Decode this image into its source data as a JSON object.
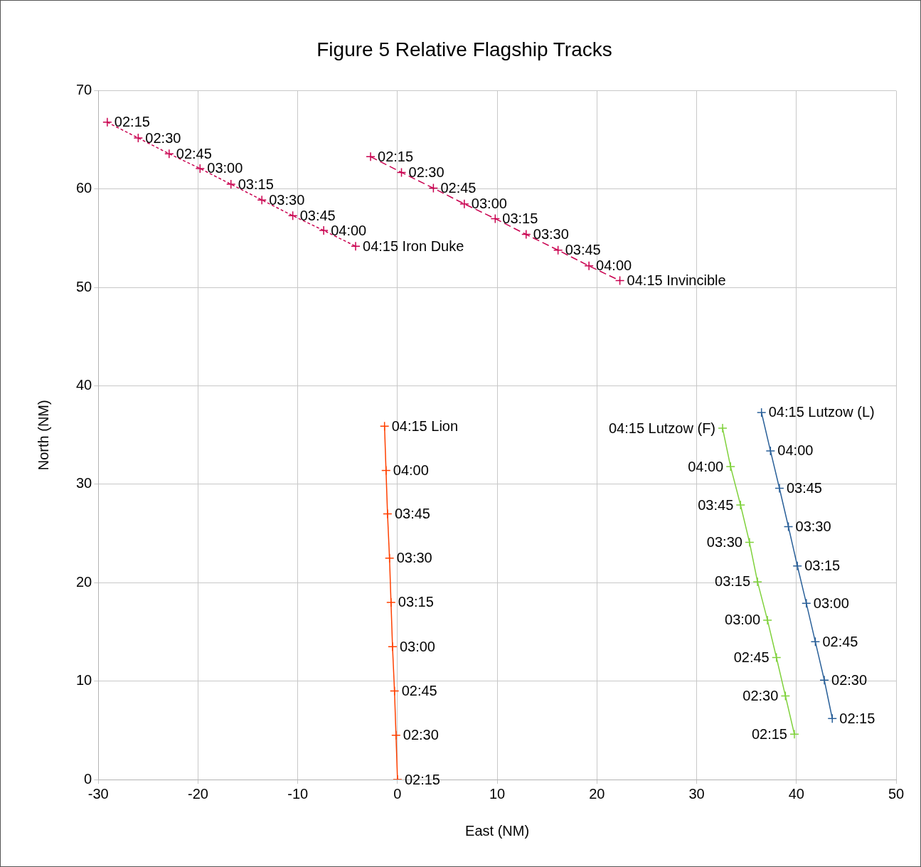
{
  "chart_data": {
    "type": "scatter",
    "title": "Figure 5 Relative Flagship Tracks",
    "xlabel": "East (NM)",
    "ylabel": "North (NM)",
    "xlim": [
      -30,
      50
    ],
    "xticks": [
      -30,
      -20,
      -10,
      0,
      10,
      20,
      30,
      40,
      50
    ],
    "ylim": [
      0,
      70
    ],
    "yticks": [
      0,
      10,
      20,
      30,
      40,
      50,
      60,
      70
    ],
    "grid": true,
    "legend": false,
    "marker": "cross",
    "series": [
      {
        "type": "line",
        "line_style": "dotted",
        "color": "#c9004f",
        "x": [
          -29.1,
          -26.0,
          -22.9,
          -19.8,
          -16.7,
          -13.6,
          -10.5,
          -7.4,
          -4.2
        ],
        "values": [
          66.8,
          65.2,
          63.6,
          62.1,
          60.5,
          58.9,
          57.3,
          55.8,
          54.2
        ]
      },
      {
        "type": "line",
        "line_style": "dashed",
        "color": "#c9004f",
        "x": [
          -2.7,
          0.4,
          3.6,
          6.7,
          9.8,
          12.9,
          16.1,
          19.2,
          22.3
        ],
        "values": [
          63.3,
          61.7,
          60.1,
          58.5,
          57.0,
          55.4,
          53.8,
          52.2,
          50.7
        ]
      },
      {
        "type": "line",
        "line_style": "solid",
        "color": "#ff4000",
        "x": [
          0,
          -0.15,
          -0.3,
          -0.5,
          -0.65,
          -0.8,
          -1.0,
          -1.15,
          -1.3
        ],
        "values": [
          0,
          4.5,
          9.0,
          13.5,
          18.0,
          22.5,
          27.0,
          31.4,
          35.9
        ]
      },
      {
        "type": "line",
        "line_style": "solid",
        "color": "#7fd13b",
        "x": [
          39.8,
          38.9,
          38.0,
          37.1,
          36.1,
          35.3,
          34.4,
          33.4,
          32.6
        ],
        "values": [
          4.6,
          8.5,
          12.4,
          16.2,
          20.1,
          24.1,
          27.9,
          31.8,
          35.7
        ]
      },
      {
        "type": "line",
        "line_style": "solid",
        "color": "#2a6099",
        "x": [
          43.6,
          42.8,
          41.9,
          41.0,
          40.1,
          39.2,
          38.3,
          37.4,
          36.5
        ],
        "values": [
          6.2,
          10.1,
          14.0,
          17.9,
          21.7,
          25.7,
          29.6,
          33.4,
          37.3
        ]
      }
    ],
    "annotations": [
      {
        "text": "02:15",
        "x": -29.1,
        "y": 66.8
      },
      {
        "text": "02:30",
        "x": -26.0,
        "y": 65.2
      },
      {
        "text": "02:45",
        "x": -22.9,
        "y": 63.6
      },
      {
        "text": "03:00",
        "x": -19.8,
        "y": 62.1
      },
      {
        "text": "03:15",
        "x": -16.7,
        "y": 60.5
      },
      {
        "text": "03:30",
        "x": -13.6,
        "y": 58.9
      },
      {
        "text": "03:45",
        "x": -10.5,
        "y": 57.3
      },
      {
        "text": "04:00",
        "x": -7.4,
        "y": 55.8
      },
      {
        "text": "04:15 Iron Duke",
        "x": -4.2,
        "y": 54.2
      },
      {
        "text": "02:15",
        "x": -2.7,
        "y": 63.3
      },
      {
        "text": "02:30",
        "x": 0.4,
        "y": 61.7
      },
      {
        "text": "02:45",
        "x": 3.6,
        "y": 60.1
      },
      {
        "text": "03:00",
        "x": 6.7,
        "y": 58.5
      },
      {
        "text": "03:15",
        "x": 9.8,
        "y": 57.0
      },
      {
        "text": "03:30",
        "x": 12.9,
        "y": 55.4
      },
      {
        "text": "03:45",
        "x": 16.1,
        "y": 53.8
      },
      {
        "text": "04:00",
        "x": 19.2,
        "y": 52.2
      },
      {
        "text": "04:15 Invincible",
        "x": 22.3,
        "y": 50.7
      },
      {
        "text": "02:15",
        "x": 0,
        "y": 0
      },
      {
        "text": "02:30",
        "x": -0.15,
        "y": 4.5
      },
      {
        "text": "02:45",
        "x": -0.3,
        "y": 9.0
      },
      {
        "text": "03:00",
        "x": -0.5,
        "y": 13.5
      },
      {
        "text": "03:15",
        "x": -0.65,
        "y": 18.0
      },
      {
        "text": "03:30",
        "x": -0.8,
        "y": 22.5
      },
      {
        "text": "03:45",
        "x": -1.0,
        "y": 27.0
      },
      {
        "text": "04:00",
        "x": -1.15,
        "y": 31.4
      },
      {
        "text": "04:15 Lion",
        "x": -1.3,
        "y": 35.9
      },
      {
        "text": "02:15",
        "x": 39.8,
        "y": 4.6
      },
      {
        "text": "02:30",
        "x": 38.9,
        "y": 8.5
      },
      {
        "text": "02:45",
        "x": 38.0,
        "y": 12.4
      },
      {
        "text": "03:00",
        "x": 37.1,
        "y": 16.2
      },
      {
        "text": "03:15",
        "x": 36.1,
        "y": 20.1
      },
      {
        "text": "03:30",
        "x": 35.3,
        "y": 24.1
      },
      {
        "text": "03:45",
        "x": 34.4,
        "y": 27.9
      },
      {
        "text": "04:00",
        "x": 33.4,
        "y": 31.8
      },
      {
        "text": "04:15 Lutzow (F)",
        "x": 32.6,
        "y": 35.7
      },
      {
        "text": "02:15",
        "x": 43.6,
        "y": 6.2
      },
      {
        "text": "02:30",
        "x": 42.8,
        "y": 10.1
      },
      {
        "text": "02:45",
        "x": 41.9,
        "y": 14.0
      },
      {
        "text": "03:00",
        "x": 41.0,
        "y": 17.9
      },
      {
        "text": "03:15",
        "x": 40.1,
        "y": 21.7
      },
      {
        "text": "03:30",
        "x": 39.2,
        "y": 25.7
      },
      {
        "text": "03:45",
        "x": 38.3,
        "y": 29.6
      },
      {
        "text": "04:00",
        "x": 37.4,
        "y": 33.4
      },
      {
        "text": "04:15 Lutzow (L)",
        "x": 36.5,
        "y": 37.3
      }
    ]
  }
}
